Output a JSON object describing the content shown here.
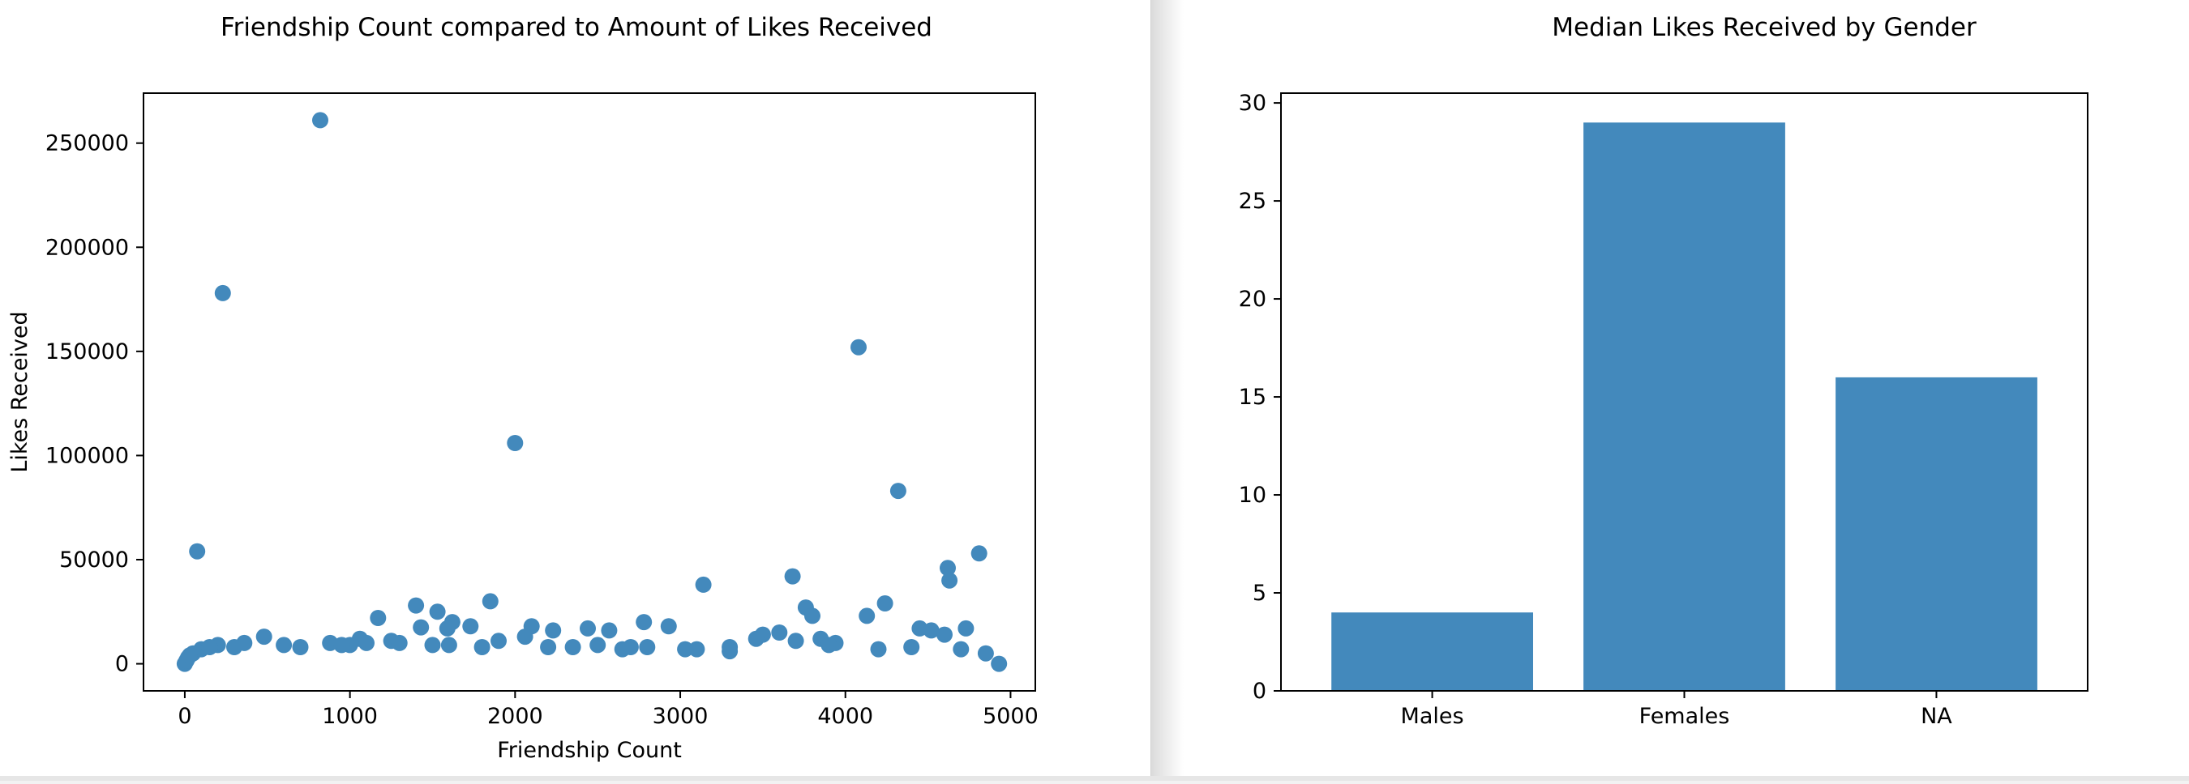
{
  "colors": {
    "marker": "#4389bc",
    "axis": "#000000",
    "background": "#ffffff"
  },
  "chart_data": [
    {
      "type": "scatter",
      "title": "Friendship Count compared to Amount of Likes Received",
      "xlabel": "Friendship Count",
      "ylabel": "Likes Received",
      "xlim": [
        -250,
        5150
      ],
      "ylim": [
        -13000,
        274000
      ],
      "xticks": [
        0,
        1000,
        2000,
        3000,
        4000,
        5000
      ],
      "yticks": [
        0,
        50000,
        100000,
        150000,
        200000,
        250000
      ],
      "grid": false,
      "legend": "none",
      "series": [
        {
          "x": [
            820,
            230,
            4080,
            2000,
            4320,
            75,
            4810,
            4620,
            3680,
            4630,
            3140,
            1850,
            1400,
            1530,
            4240,
            4130,
            3760,
            3800,
            1170,
            2930,
            2780,
            4450,
            4730,
            1430,
            3600,
            1730,
            2100,
            4520,
            3500,
            2230,
            2440,
            2570,
            3460,
            4600,
            3940,
            3850,
            1060,
            1250,
            880,
            480,
            360,
            300,
            200,
            100,
            50,
            20,
            0,
            10,
            30,
            150,
            600,
            700,
            1000,
            1300,
            1600,
            1900,
            2200,
            2500,
            2800,
            3100,
            3300,
            3700,
            3900,
            4200,
            4400,
            4700,
            4850,
            4930,
            1620,
            1590,
            2060,
            3030,
            3300,
            2650,
            950,
            1100,
            1500,
            1800,
            2350,
            2700
          ],
          "y": [
            261000,
            178000,
            152000,
            106000,
            83000,
            54000,
            53000,
            46000,
            42000,
            40000,
            38000,
            30000,
            28000,
            25000,
            29000,
            23000,
            27000,
            23000,
            22000,
            18000,
            20000,
            17000,
            17000,
            17500,
            15000,
            18000,
            18000,
            16000,
            14000,
            16000,
            17000,
            16000,
            12000,
            14000,
            10000,
            12000,
            12000,
            11000,
            10000,
            13000,
            10000,
            8000,
            9000,
            7000,
            5000,
            3000,
            0,
            1500,
            4000,
            8000,
            9000,
            8000,
            9000,
            10000,
            9000,
            11000,
            8000,
            9000,
            8000,
            7000,
            8000,
            11000,
            9000,
            7000,
            8000,
            7000,
            5000,
            0,
            20000,
            17000,
            13000,
            7000,
            6000,
            7000,
            9000,
            10000,
            9000,
            8000,
            8000,
            8000
          ]
        }
      ]
    },
    {
      "type": "bar",
      "title": "Median Likes Received by Gender",
      "xlabel": "",
      "ylabel": "",
      "categories": [
        "Males",
        "Females",
        "NA"
      ],
      "values": [
        4,
        29,
        16
      ],
      "ylim": [
        0,
        30.5
      ],
      "yticks": [
        0,
        5,
        10,
        15,
        20,
        25,
        30
      ],
      "grid": false,
      "legend": "none"
    }
  ]
}
